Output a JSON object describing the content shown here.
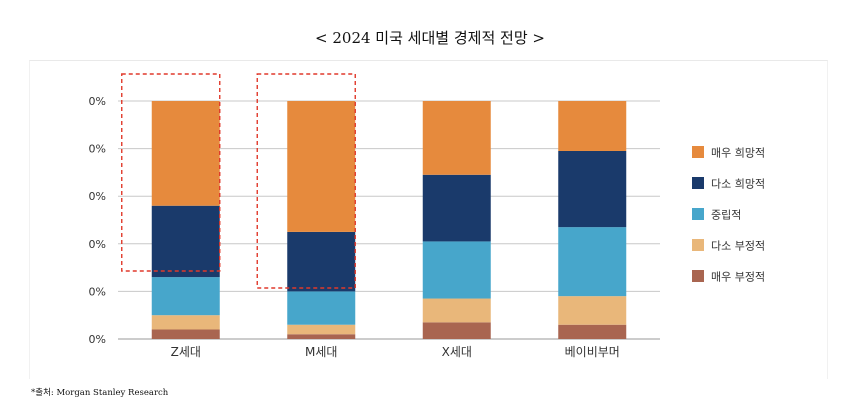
{
  "title": "< 2024 미국 세대별 경제적 전망 >",
  "source": "*출처: Morgan Stanley Research",
  "chart_data": {
    "type": "bar",
    "stacked": true,
    "categories": [
      "Z세대",
      "M세대",
      "X세대",
      "베이비부머"
    ],
    "y_tick_labels": [
      "0%",
      "0%",
      "0%",
      "0%",
      "0%",
      "0%"
    ],
    "ylim": [
      0,
      100
    ],
    "legend_position": "right",
    "series": [
      {
        "name": "매우 부정적",
        "color": "#A96550",
        "values": [
          4,
          2,
          7,
          6
        ]
      },
      {
        "name": "다소 부정적",
        "color": "#E9B77A",
        "values": [
          6,
          4,
          10,
          12
        ]
      },
      {
        "name": "중립적",
        "color": "#47A6CB",
        "values": [
          16,
          14,
          24,
          29
        ]
      },
      {
        "name": "다소 희망적",
        "color": "#1A3A6B",
        "values": [
          30,
          25,
          28,
          32
        ]
      },
      {
        "name": "매우 희망적",
        "color": "#E68A3D",
        "values": [
          44,
          55,
          31,
          21
        ]
      }
    ],
    "highlighted_categories": [
      "Z세대",
      "M세대"
    ]
  }
}
